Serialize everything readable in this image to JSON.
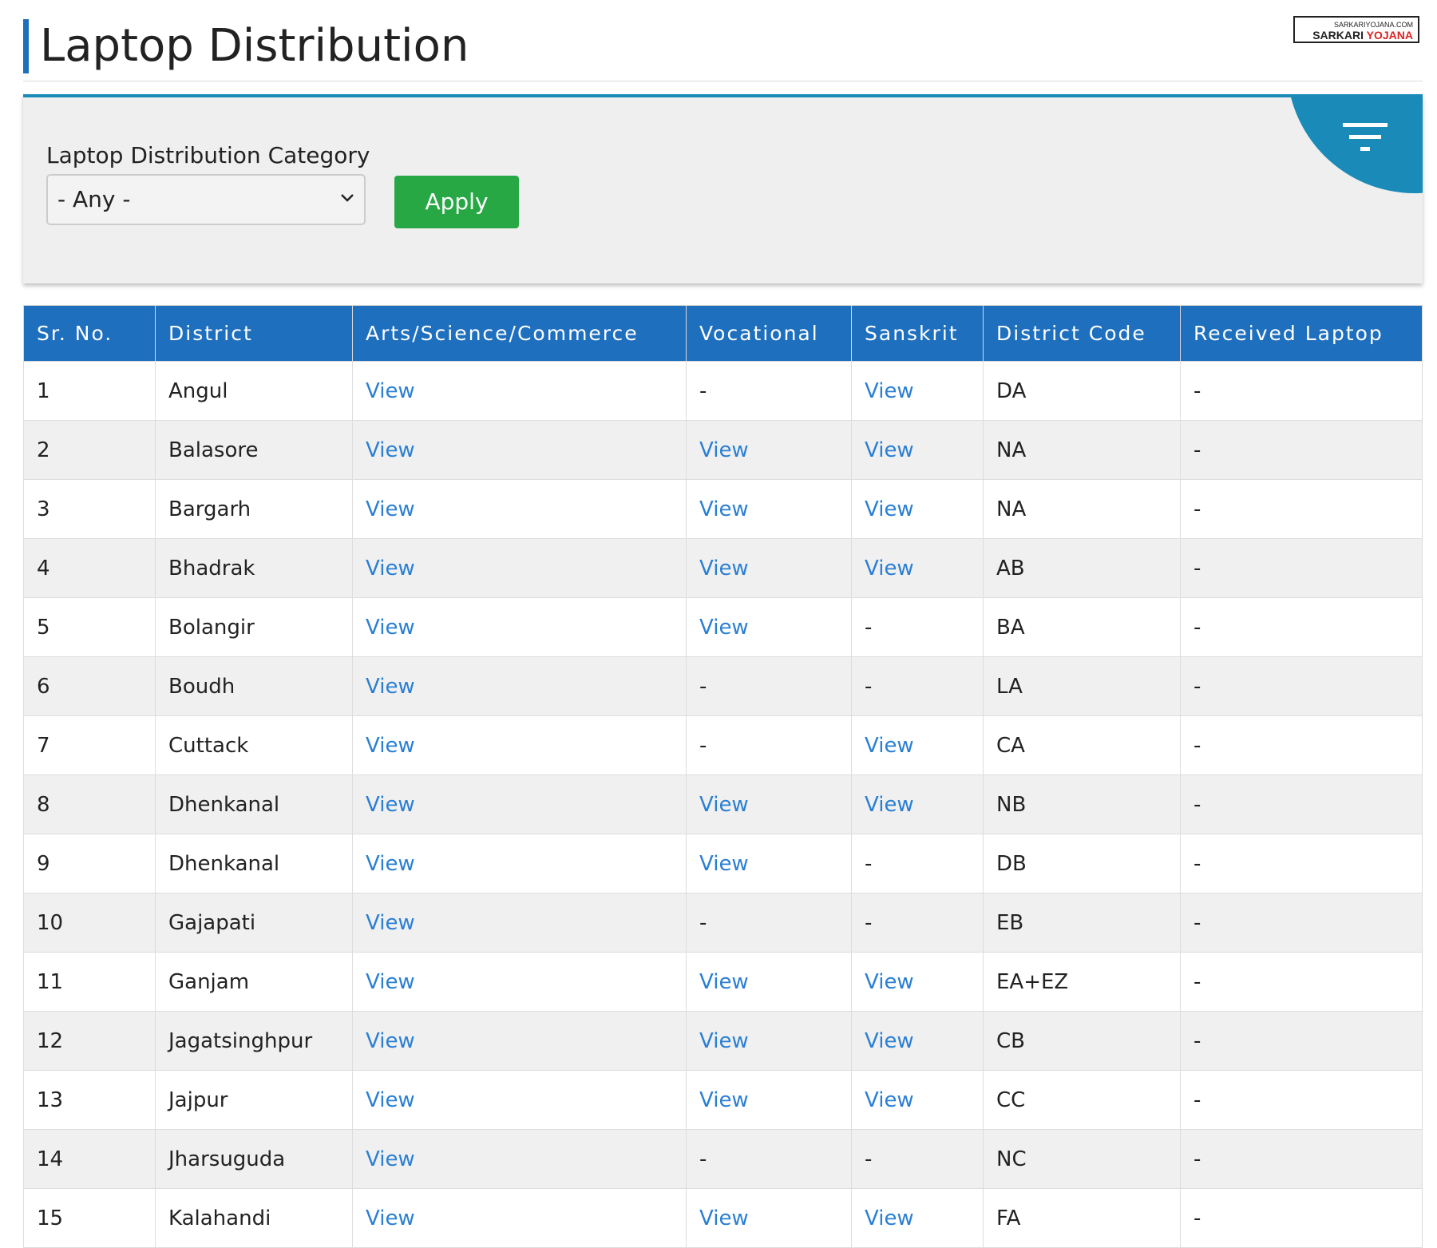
{
  "header": {
    "title": "Laptop Distribution",
    "logo_top": "SARKARIYOJANA.COM",
    "logo_left": "SARKARI",
    "logo_right": "YOJANA"
  },
  "filter": {
    "label": "Laptop Distribution Category",
    "select": "- Any -",
    "button": "Apply"
  },
  "table": {
    "headers": [
      "Sr. No.",
      "District",
      "Arts/Science/Commerce",
      "Vocational",
      "Sanskrit",
      "District Code",
      "Received Laptop"
    ],
    "rows": [
      [
        "1",
        "Angul",
        "View",
        "-",
        "View",
        "DA",
        "-"
      ],
      [
        "2",
        "Balasore",
        "View",
        "View",
        "View",
        "NA",
        "-"
      ],
      [
        "3",
        "Bargarh",
        "View",
        "View",
        "View",
        "NA",
        "-"
      ],
      [
        "4",
        "Bhadrak",
        "View",
        "View",
        "View",
        "AB",
        "-"
      ],
      [
        "5",
        "Bolangir",
        "View",
        "View",
        "-",
        "BA",
        "-"
      ],
      [
        "6",
        "Boudh",
        "View",
        "-",
        "-",
        "LA",
        "-"
      ],
      [
        "7",
        "Cuttack",
        "View",
        "-",
        "View",
        "CA",
        "-"
      ],
      [
        "8",
        "Dhenkanal",
        "View",
        "View",
        "View",
        "NB",
        "-"
      ],
      [
        "9",
        "Dhenkanal",
        "View",
        "View",
        "-",
        "DB",
        "-"
      ],
      [
        "10",
        "Gajapati",
        "View",
        "-",
        "-",
        "EB",
        "-"
      ],
      [
        "11",
        "Ganjam",
        "View",
        "View",
        "View",
        "EA+EZ",
        "-"
      ],
      [
        "12",
        "Jagatsinghpur",
        "View",
        "View",
        "View",
        "CB",
        "-"
      ],
      [
        "13",
        "Jajpur",
        "View",
        "View",
        "View",
        "CC",
        "-"
      ],
      [
        "14",
        "Jharsuguda",
        "View",
        "-",
        "-",
        "NC",
        "-"
      ],
      [
        "15",
        "Kalahandi",
        "View",
        "View",
        "View",
        "FA",
        "-"
      ]
    ]
  }
}
